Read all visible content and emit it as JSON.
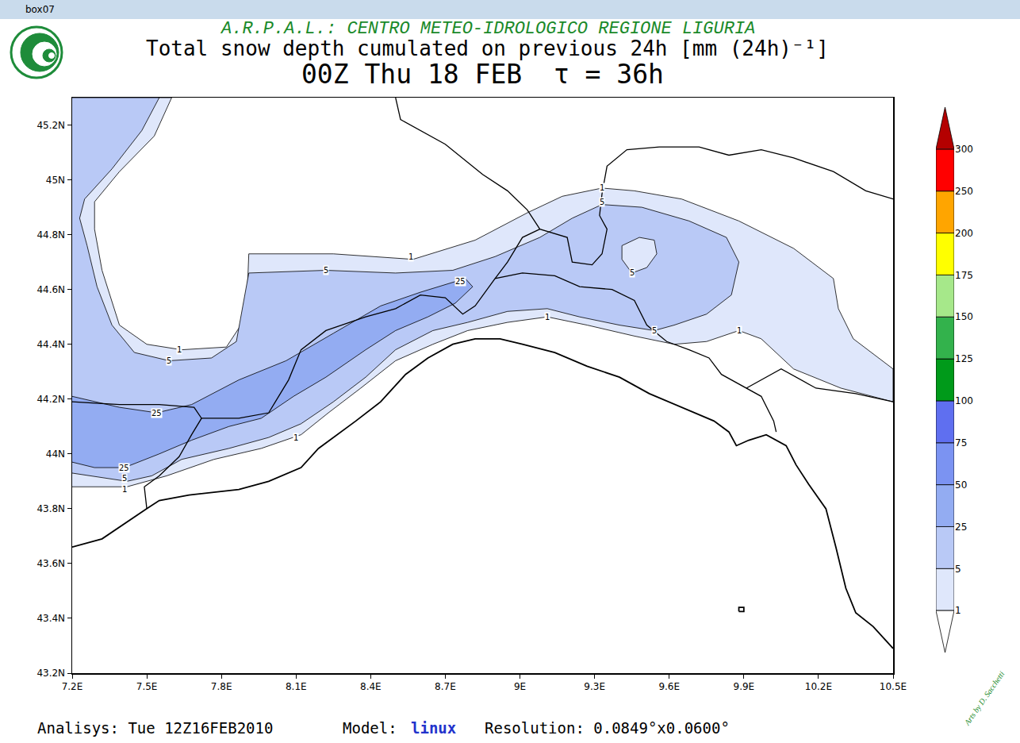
{
  "window_title": "box07",
  "agency": "A.R.P.A.L.: CENTRO METEO-IDROLOGICO REGIONE LIGURIA",
  "footer": {
    "analysis": "Analisys: Tue 12Z16FEB2010",
    "model_label": "Model:",
    "model": "linux",
    "resolution": "Resolution: 0.0849°x0.0600°"
  },
  "signature": "Arts by D. Sacchetti",
  "chart_data": {
    "type": "contour_map",
    "title": "Total snow depth cumulated on previous 24h [mm (24h)⁻¹]",
    "subtitle": "00Z Thu 18 FEB  τ = 36h",
    "xlim": [
      7.2,
      10.5
    ],
    "xticks": [
      {
        "value": 7.2,
        "label": "7.2E"
      },
      {
        "value": 7.5,
        "label": "7.5E"
      },
      {
        "value": 7.8,
        "label": "7.8E"
      },
      {
        "value": 8.1,
        "label": "8.1E"
      },
      {
        "value": 8.4,
        "label": "8.4E"
      },
      {
        "value": 8.7,
        "label": "8.7E"
      },
      {
        "value": 9,
        "label": "9E"
      },
      {
        "value": 9.3,
        "label": "9.3E"
      },
      {
        "value": 9.6,
        "label": "9.6E"
      },
      {
        "value": 9.9,
        "label": "9.9E"
      },
      {
        "value": 10.2,
        "label": "10.2E"
      },
      {
        "value": 10.5,
        "label": "10.5E"
      }
    ],
    "ylim": [
      43.2,
      45.3
    ],
    "yticks": [
      {
        "value": 43.2,
        "label": "43.2N"
      },
      {
        "value": 43.4,
        "label": "43.4N"
      },
      {
        "value": 43.6,
        "label": "43.6N"
      },
      {
        "value": 43.8,
        "label": "43.8N"
      },
      {
        "value": 44,
        "label": "44N"
      },
      {
        "value": 44.2,
        "label": "44.2N"
      },
      {
        "value": 44.4,
        "label": "44.4N"
      },
      {
        "value": 44.6,
        "label": "44.6N"
      },
      {
        "value": 44.8,
        "label": "44.8N"
      },
      {
        "value": 45,
        "label": "45N"
      },
      {
        "value": 45.2,
        "label": "45.2N"
      }
    ],
    "grid": false,
    "levels": [
      1,
      5,
      25,
      50,
      75,
      100,
      125,
      150,
      175,
      200,
      250,
      300
    ],
    "colors": [
      "#ffffff",
      "#dfe7fb",
      "#b9c9f6",
      "#93acf2",
      "#7b93f2",
      "#5f6ff0",
      "#009a1a",
      "#33b24c",
      "#a6e88a",
      "#ffff00",
      "#ffa500",
      "#ff0000",
      "#b40000"
    ],
    "regions": [
      {
        "level": 1,
        "lon": [
          7.2,
          7.6,
          7.53,
          7.39,
          7.29,
          7.29,
          7.32,
          7.39,
          7.5,
          7.64,
          7.82,
          7.9,
          7.91,
          8.25,
          8.57,
          8.82,
          9.03,
          9.17,
          9.33,
          9.46,
          9.65,
          9.88,
          10.1,
          10.26,
          10.28,
          10.34,
          10.5,
          10.5,
          10.29,
          10.1,
          9.97,
          9.88,
          9.75,
          9.62,
          9.46,
          9.27,
          9.11,
          8.95,
          8.79,
          8.65,
          8.5,
          8.36,
          8.23,
          8.12,
          7.96,
          7.77,
          7.58,
          7.42,
          7.2
        ],
        "lat": [
          45.3,
          45.3,
          45.16,
          45.03,
          44.92,
          44.82,
          44.67,
          44.47,
          44.4,
          44.38,
          44.39,
          44.5,
          44.73,
          44.73,
          44.71,
          44.78,
          44.88,
          44.94,
          44.97,
          44.96,
          44.93,
          44.85,
          44.75,
          44.64,
          44.53,
          44.42,
          44.31,
          44.19,
          44.24,
          44.31,
          44.42,
          44.45,
          44.41,
          44.4,
          44.43,
          44.47,
          44.5,
          44.48,
          44.45,
          44.4,
          44.34,
          44.24,
          44.15,
          44.07,
          44.02,
          43.98,
          43.92,
          43.88,
          43.88
        ]
      },
      {
        "level": 5,
        "lon": [
          7.2,
          7.55,
          7.48,
          7.36,
          7.25,
          7.23,
          7.26,
          7.3,
          7.36,
          7.45,
          7.59,
          7.76,
          7.86,
          7.91,
          8.22,
          8.5,
          8.73,
          8.9,
          9.08,
          9.21,
          9.33,
          9.49,
          9.68,
          9.83,
          9.88,
          9.85,
          9.75,
          9.62,
          9.54,
          9.4,
          9.24,
          9.11,
          8.95,
          8.79,
          8.65,
          8.5,
          8.38,
          8.25,
          8.12,
          7.99,
          7.83,
          7.64,
          7.52,
          7.42,
          7.2
        ],
        "lat": [
          45.3,
          45.3,
          45.18,
          45.04,
          44.93,
          44.86,
          44.76,
          44.61,
          44.47,
          44.37,
          44.34,
          44.35,
          44.41,
          44.66,
          44.67,
          44.66,
          44.67,
          44.72,
          44.79,
          44.86,
          44.91,
          44.9,
          44.85,
          44.79,
          44.7,
          44.58,
          44.51,
          44.47,
          44.45,
          44.47,
          44.5,
          44.53,
          44.52,
          44.48,
          44.45,
          44.38,
          44.28,
          44.19,
          44.11,
          44.06,
          44.02,
          43.98,
          43.92,
          43.9,
          43.93
        ]
      },
      {
        "level": 1,
        "lon": [
          9.41,
          9.48,
          9.54,
          9.55,
          9.51,
          9.45,
          9.41,
          9.41
        ],
        "lat": [
          44.76,
          44.79,
          44.78,
          44.73,
          44.68,
          44.66,
          44.71,
          44.76
        ]
      },
      {
        "level": 25,
        "lon": [
          7.2,
          7.39,
          7.54,
          7.68,
          7.87,
          8.06,
          8.25,
          8.44,
          8.6,
          8.78,
          8.81,
          8.74,
          8.63,
          8.5,
          8.38,
          8.22,
          8.09,
          7.96,
          7.83,
          7.68,
          7.55,
          7.41,
          7.29,
          7.2
        ],
        "lat": [
          44.21,
          44.17,
          44.15,
          44.18,
          44.27,
          44.34,
          44.44,
          44.54,
          44.59,
          44.64,
          44.61,
          44.55,
          44.5,
          44.45,
          44.38,
          44.28,
          44.21,
          44.13,
          44.1,
          44.05,
          44.0,
          43.95,
          43.95,
          43.97
        ]
      }
    ],
    "contour_labels": [
      {
        "level": 1,
        "lon": 8.56,
        "lat": 44.72
      },
      {
        "level": 5,
        "lon": 8.22,
        "lat": 44.67
      },
      {
        "level": 1,
        "lon": 7.63,
        "lat": 44.38
      },
      {
        "level": 5,
        "lon": 7.59,
        "lat": 44.34
      },
      {
        "level": 25,
        "lon": 8.76,
        "lat": 44.63
      },
      {
        "level": 1,
        "lon": 9.33,
        "lat": 44.97
      },
      {
        "level": 5,
        "lon": 9.33,
        "lat": 44.92
      },
      {
        "level": 5,
        "lon": 9.45,
        "lat": 44.66
      },
      {
        "level": 5,
        "lon": 9.54,
        "lat": 44.45
      },
      {
        "level": 1,
        "lon": 9.88,
        "lat": 44.45
      },
      {
        "level": 1,
        "lon": 9.11,
        "lat": 44.5
      },
      {
        "level": 25,
        "lon": 7.54,
        "lat": 44.15
      },
      {
        "level": 1,
        "lon": 8.1,
        "lat": 44.06
      },
      {
        "level": 25,
        "lon": 7.41,
        "lat": 43.95
      },
      {
        "level": 5,
        "lon": 7.41,
        "lat": 43.91
      },
      {
        "level": 1,
        "lon": 7.41,
        "lat": 43.87
      }
    ],
    "coastline": [
      {
        "lon": [
          7.2,
          7.32,
          7.5,
          7.55,
          7.67,
          7.87,
          7.99,
          8.12,
          8.19,
          8.25,
          8.34,
          8.44,
          8.54,
          8.63,
          8.73,
          8.82,
          8.92,
          9.01,
          9.14,
          9.27,
          9.4,
          9.52,
          9.65,
          9.78,
          9.84,
          9.87,
          9.92,
          9.99,
          10.07,
          10.11,
          10.16,
          10.23,
          10.27,
          10.31,
          10.35,
          10.42,
          10.5
        ],
        "lat": [
          43.66,
          43.69,
          43.8,
          43.83,
          43.85,
          43.87,
          43.9,
          43.95,
          44.02,
          44.06,
          44.12,
          44.19,
          44.29,
          44.35,
          44.4,
          44.42,
          44.42,
          44.4,
          44.37,
          44.32,
          44.28,
          44.22,
          44.17,
          44.12,
          44.08,
          44.03,
          44.05,
          44.07,
          44.03,
          43.96,
          43.89,
          43.8,
          43.66,
          43.51,
          43.42,
          43.37,
          43.29
        ]
      },
      {
        "lon": [
          9.88,
          9.9,
          9.9,
          9.88,
          9.88
        ],
        "lat": [
          43.425,
          43.425,
          43.44,
          43.44,
          43.425
        ]
      }
    ],
    "borders": [
      {
        "lon": [
          7.5,
          7.49,
          7.55,
          7.63,
          7.68,
          7.72,
          7.69,
          7.55,
          7.39,
          7.2
        ],
        "lat": [
          43.8,
          43.88,
          43.92,
          43.99,
          44.07,
          44.13,
          44.17,
          44.18,
          44.18,
          44.19
        ]
      },
      {
        "lon": [
          7.72,
          7.87,
          7.99,
          8.07,
          8.12,
          8.22,
          8.38,
          8.5,
          8.6,
          8.7,
          8.77,
          8.82,
          8.9,
          9.01,
          9.14,
          9.24,
          9.37,
          9.46,
          9.51,
          9.59,
          9.68,
          9.76,
          9.81,
          9.91,
          9.97,
          10.02,
          10.03
        ],
        "lat": [
          44.13,
          44.13,
          44.15,
          44.27,
          44.38,
          44.45,
          44.5,
          44.53,
          44.58,
          44.57,
          44.51,
          44.54,
          44.64,
          44.66,
          44.65,
          44.61,
          44.6,
          44.56,
          44.47,
          44.41,
          44.38,
          44.35,
          44.29,
          44.24,
          44.21,
          44.12,
          44.08
        ]
      },
      {
        "lon": [
          8.5,
          8.52,
          8.7,
          8.85,
          8.95,
          9.03,
          9.08,
          9.19,
          9.21,
          9.29,
          9.33,
          9.35,
          9.32,
          9.33,
          9.35,
          9.43,
          9.56,
          9.72,
          9.84,
          9.97,
          10.1,
          10.26,
          10.39,
          10.5
        ],
        "lat": [
          45.3,
          45.22,
          45.13,
          45.02,
          44.96,
          44.89,
          44.82,
          44.79,
          44.7,
          44.69,
          44.73,
          44.82,
          44.87,
          44.95,
          45.05,
          45.11,
          45.12,
          45.12,
          45.09,
          45.11,
          45.08,
          45.03,
          44.96,
          44.93
        ]
      },
      {
        "lon": [
          8.9,
          8.95,
          9.01,
          9.08
        ],
        "lat": [
          44.64,
          44.7,
          44.79,
          44.82
        ]
      },
      {
        "lon": [
          9.91,
          10.05,
          10.19,
          10.35,
          10.5
        ],
        "lat": [
          44.24,
          44.31,
          44.24,
          44.22,
          44.19
        ]
      }
    ]
  }
}
